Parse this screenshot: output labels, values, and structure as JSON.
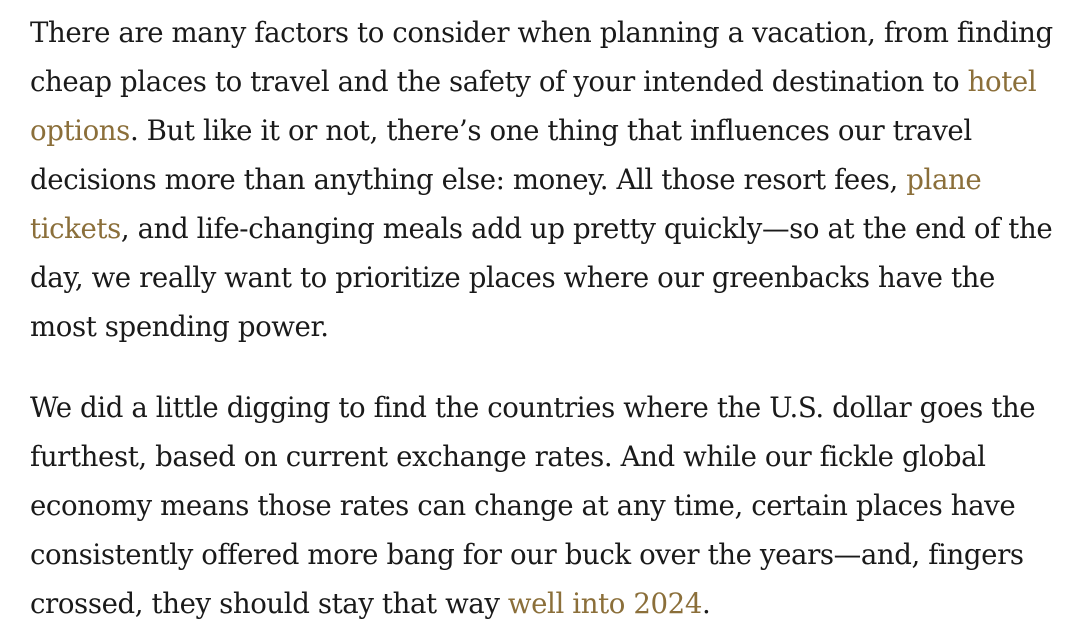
{
  "article": {
    "p1": {
      "t1": "There are many factors to consider when planning a vacation, from finding cheap places to travel and the safety of your intended destination to ",
      "link1": "hotel options",
      "t2": ". But like it or not, there’s one thing that influences our travel decisions more than anything else: money. All those resort fees, ",
      "link2": "plane tickets",
      "t3": ", and life-changing meals add up pretty quickly—so at the end of the day, we really want to prioritize places where our greenbacks have the most spending power."
    },
    "p2": {
      "t1": "We did a little digging to find the countries where the U.S. dollar goes the furthest, based on current exchange rates. And while our fickle global economy means those rates can change at any time, certain places have consistently offered more bang for our buck over the years—and, fingers crossed, they should stay that way ",
      "link1": "well into 2024",
      "t2": "."
    }
  }
}
